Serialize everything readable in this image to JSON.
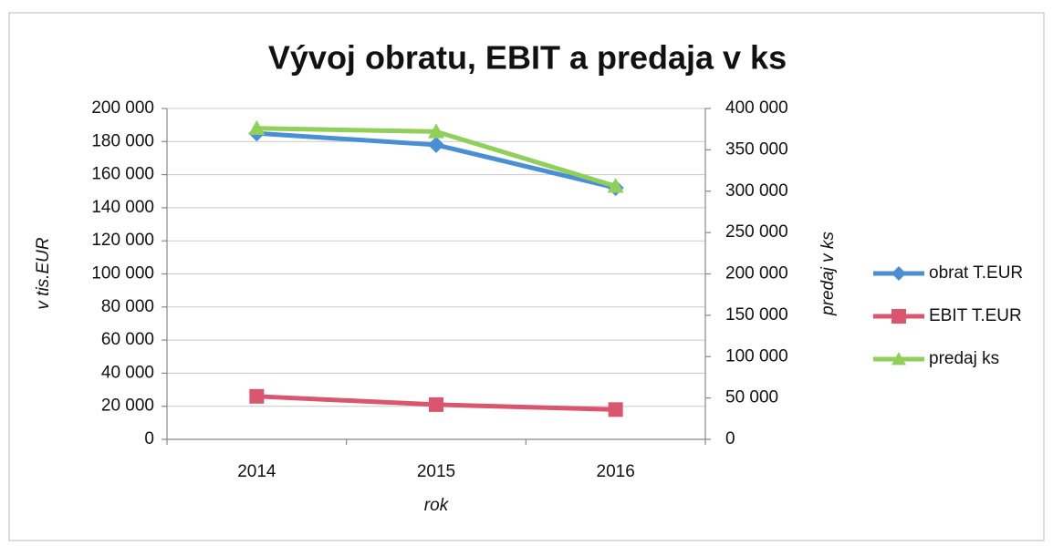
{
  "chart_data": {
    "type": "line",
    "title": "Vývoj obratu, EBIT a predaja v ks",
    "x_label": "rok",
    "y_label": "v tis.EUR",
    "y2_label": "predaj v ks",
    "categories": [
      "2014",
      "2015",
      "2016"
    ],
    "series": [
      {
        "name": "obrat T.EUR",
        "color": "#4a8fd4",
        "marker": "diamond",
        "values": [
          185000,
          178000,
          152000
        ]
      },
      {
        "name": "EBIT T.EUR",
        "color": "#d9566e",
        "marker": "square",
        "values": [
          26000,
          21000,
          18000
        ]
      },
      {
        "name": "predaj ks",
        "color": "#8fcf5a",
        "marker": "triangle",
        "axis": "y2",
        "values": [
          376000,
          372000,
          306000
        ]
      }
    ],
    "ylim": [
      0,
      200000
    ],
    "yticks": [
      0,
      {
        "value": 20000,
        "label": "20 000"
      },
      {
        "value": 40000,
        "label": "40 000"
      },
      {
        "value": 60000,
        "label": "60 000"
      },
      {
        "value": 80000,
        "label": "80 000"
      },
      {
        "value": 100000,
        "label": "100 000"
      },
      {
        "value": 120000,
        "label": "120 000"
      },
      {
        "value": 140000,
        "label": "140 000"
      },
      {
        "value": 160000,
        "label": "160 000"
      },
      {
        "value": 180000,
        "label": "180 000"
      },
      {
        "value": 200000,
        "label": "200 000"
      }
    ],
    "y2lim": [
      0,
      400000
    ],
    "y2ticks": [
      0,
      {
        "value": 50000,
        "label": "50 000"
      },
      {
        "value": 100000,
        "label": "100 000"
      },
      {
        "value": 150000,
        "label": "150 000"
      },
      {
        "value": 200000,
        "label": "200 000"
      },
      {
        "value": 250000,
        "label": "250 000"
      },
      {
        "value": 300000,
        "label": "300 000"
      },
      {
        "value": 350000,
        "label": "350 000"
      },
      {
        "value": 400000,
        "label": "400 000"
      }
    ],
    "grid": true,
    "legend": "right"
  }
}
